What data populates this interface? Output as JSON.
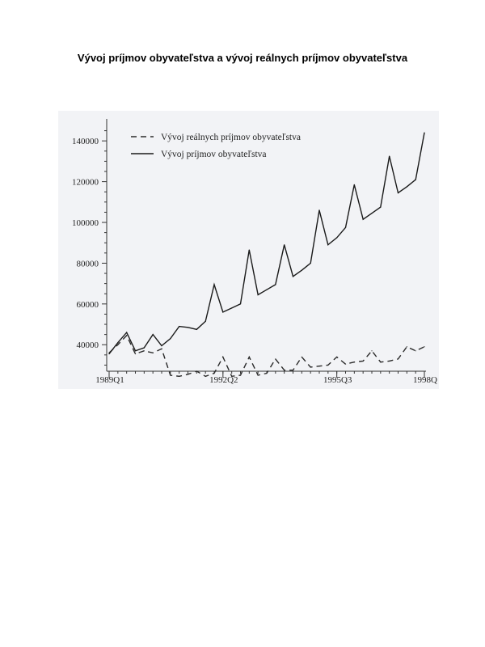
{
  "page": {
    "title": "Vývoj príjmov obyvateľstva a vývoj reálnych príjmov obyvateľstva"
  },
  "chart_data": {
    "type": "line",
    "x": [
      "1989Q1",
      "1989Q2",
      "1989Q3",
      "1989Q4",
      "1990Q1",
      "1990Q2",
      "1990Q3",
      "1990Q4",
      "1991Q1",
      "1991Q2",
      "1991Q3",
      "1991Q4",
      "1992Q1",
      "1992Q2",
      "1992Q3",
      "1992Q4",
      "1993Q1",
      "1993Q2",
      "1993Q3",
      "1993Q4",
      "1994Q1",
      "1994Q2",
      "1994Q3",
      "1994Q4",
      "1995Q1",
      "1995Q2",
      "1995Q3",
      "1995Q4",
      "1996Q1",
      "1996Q2",
      "1996Q3",
      "1996Q4",
      "1997Q1",
      "1997Q2",
      "1997Q3",
      "1997Q4",
      "1998Q1"
    ],
    "x_tick_labels": [
      "1989Q1",
      "1992Q2",
      "1995Q3",
      "1998Q"
    ],
    "x_tick_indices": [
      0,
      13,
      26,
      36
    ],
    "y_ticks": [
      40000,
      60000,
      80000,
      100000,
      120000,
      140000
    ],
    "y_tick_labels": [
      "40000",
      "60000",
      "80000",
      "100000",
      "120000",
      "140000"
    ],
    "ylim": [
      27000,
      150000
    ],
    "legend_position": "top-left",
    "series": [
      {
        "name": "Vývoj reálnych príjmov obyvateľstva",
        "style": "dashed",
        "color": "#2a2a2a",
        "values": [
          36000,
          40000,
          44500,
          35500,
          37000,
          36000,
          38000,
          25000,
          24500,
          25500,
          27000,
          24500,
          26000,
          34000,
          24500,
          25000,
          34000,
          25000,
          26000,
          33000,
          27500,
          27500,
          34000,
          29000,
          29500,
          30000,
          34000,
          30500,
          31500,
          32000,
          37000,
          31500,
          32000,
          33000,
          39000,
          37000,
          39000
        ]
      },
      {
        "name": "Vývoj príjmov obyvateľstva",
        "style": "solid",
        "color": "#1a1a1a",
        "values": [
          35500,
          41000,
          46000,
          37000,
          38500,
          45000,
          39500,
          43000,
          49000,
          48500,
          47500,
          51500,
          69500,
          56000,
          58000,
          60000,
          86500,
          64500,
          67000,
          69500,
          89000,
          73500,
          76500,
          80000,
          106000,
          89000,
          92500,
          97500,
          118500,
          101500,
          104500,
          107500,
          132500,
          114500,
          117500,
          121000,
          144000
        ]
      }
    ]
  }
}
